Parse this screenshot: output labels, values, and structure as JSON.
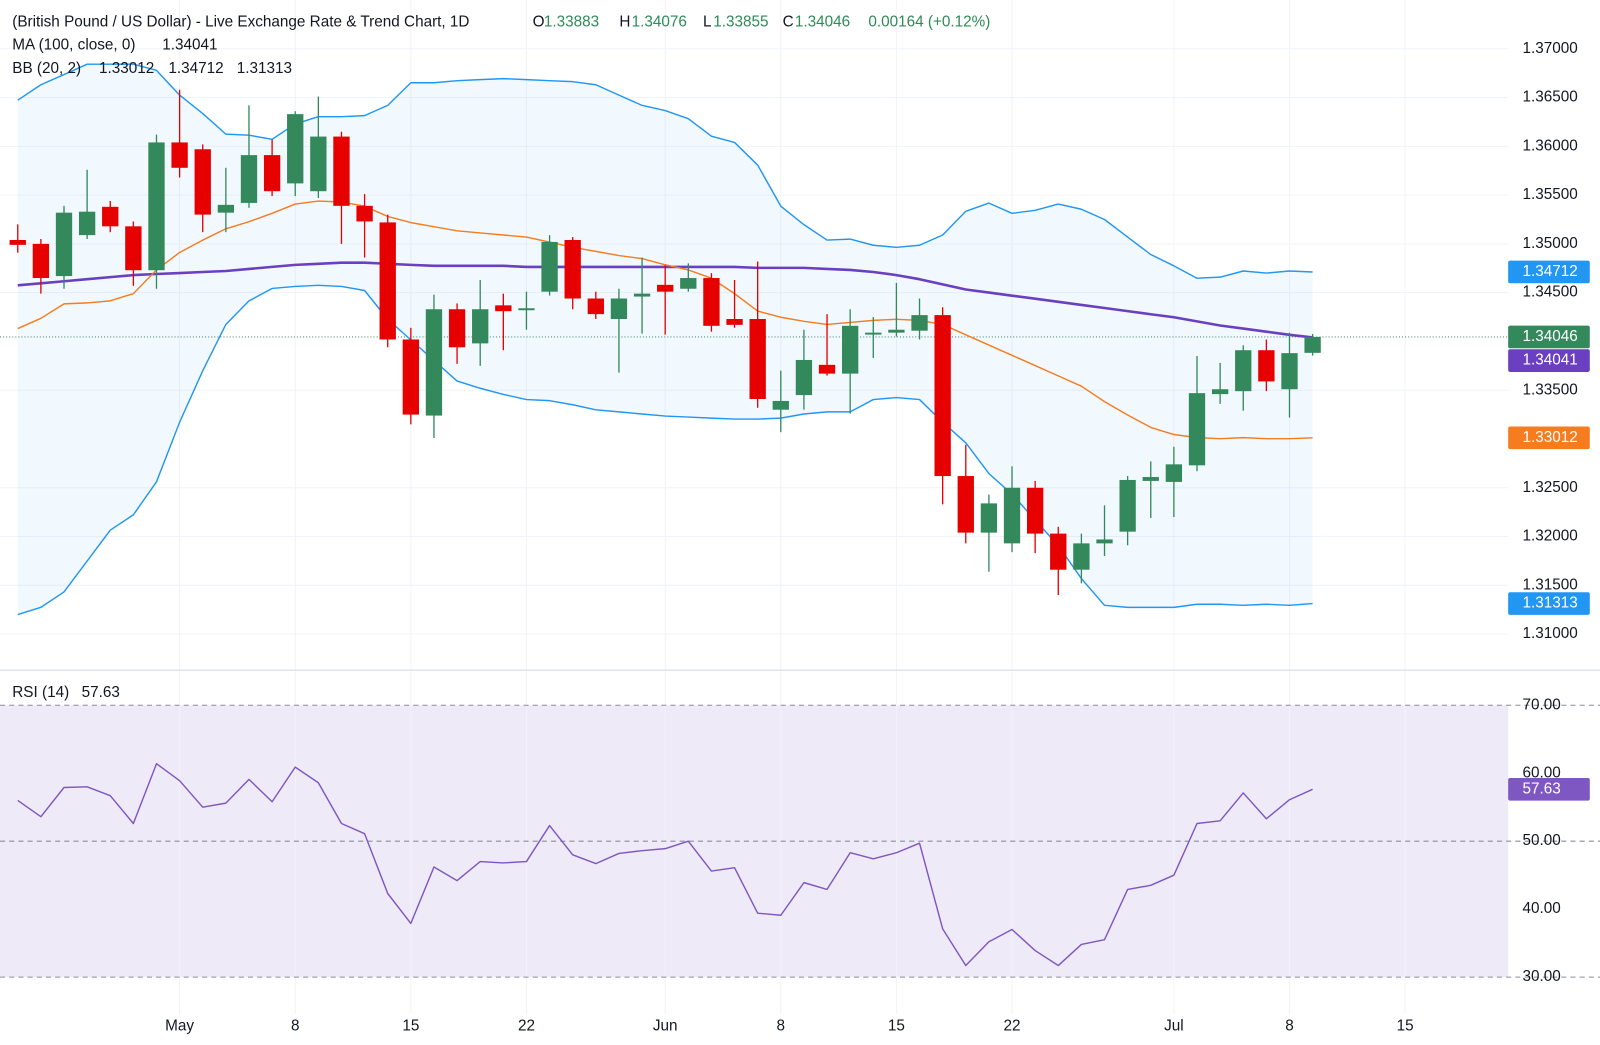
{
  "chart_data": [
    {
      "type": "candlestick",
      "title": "(British Pound / US Dollar) - Live Exchange Rate & Trend Chart, 1D",
      "ohlc_labels": [
        "O",
        "H",
        "L",
        "C"
      ],
      "change": "0.00164 (+0.12%)",
      "up_color": "#34895c",
      "down_color": "#e60000",
      "open": [
        1.3504,
        1.35,
        1.3467,
        1.3509,
        1.3538,
        1.3518,
        1.3473,
        1.3604,
        1.3597,
        1.3532,
        1.3542,
        1.3591,
        1.3562,
        1.3554,
        1.361,
        1.3539,
        1.3522,
        1.3402,
        1.3324,
        1.3433,
        1.3398,
        1.3437,
        1.3432,
        1.3451,
        1.3504,
        1.3444,
        1.3423,
        1.3446,
        1.3458,
        1.3454,
        1.3465,
        1.3423,
        1.3423,
        1.333,
        1.3345,
        1.3376,
        1.3367,
        1.3407,
        1.3409,
        1.3411,
        1.3427,
        1.3262,
        1.3204,
        1.3193,
        1.325,
        1.3203,
        1.3166,
        1.3193,
        1.3205,
        1.3257,
        1.3256,
        1.3273,
        1.3346,
        1.3349,
        1.3391,
        1.3351,
        1.33883,
        null,
        null,
        null,
        null
      ],
      "high": [
        1.352,
        1.3505,
        1.3539,
        1.3576,
        1.3544,
        1.3523,
        1.3612,
        1.3658,
        1.3602,
        1.3578,
        1.3642,
        1.3607,
        1.3636,
        1.3651,
        1.3615,
        1.3551,
        1.353,
        1.3414,
        1.3448,
        1.3439,
        1.3463,
        1.3449,
        1.3451,
        1.3509,
        1.3507,
        1.3451,
        1.3454,
        1.3486,
        1.3478,
        1.348,
        1.347,
        1.3463,
        1.3482,
        1.337,
        1.3412,
        1.3428,
        1.3433,
        1.3425,
        1.346,
        1.3444,
        1.3435,
        1.3294,
        1.3243,
        1.3272,
        1.3257,
        1.321,
        1.3203,
        1.3232,
        1.3262,
        1.3277,
        1.3292,
        1.3385,
        1.3378,
        1.3396,
        1.3402,
        1.3409,
        1.34076,
        null,
        null,
        null,
        null
      ],
      "low": [
        1.3491,
        1.3449,
        1.3454,
        1.3505,
        1.3512,
        1.3457,
        1.3454,
        1.3568,
        1.3512,
        1.3512,
        1.3537,
        1.3549,
        1.3549,
        1.3547,
        1.35,
        1.3486,
        1.3394,
        1.3315,
        1.3301,
        1.3377,
        1.3375,
        1.3391,
        1.3412,
        1.3447,
        1.3433,
        1.3423,
        1.3368,
        1.3408,
        1.3407,
        1.3451,
        1.341,
        1.3414,
        1.3332,
        1.3307,
        1.333,
        1.3365,
        1.3326,
        1.3383,
        1.3405,
        1.3402,
        1.3233,
        1.3193,
        1.3164,
        1.3184,
        1.3183,
        1.314,
        1.3152,
        1.318,
        1.3191,
        1.3219,
        1.322,
        1.3267,
        1.3336,
        1.3329,
        1.3349,
        1.3322,
        1.33855,
        null,
        null,
        null,
        null
      ],
      "close": [
        1.3499,
        1.3465,
        1.3532,
        1.3533,
        1.3518,
        1.3473,
        1.3604,
        1.3578,
        1.353,
        1.354,
        1.3591,
        1.3554,
        1.3633,
        1.361,
        1.3539,
        1.3523,
        1.3402,
        1.3325,
        1.3433,
        1.3394,
        1.3433,
        1.3431,
        1.3434,
        1.3502,
        1.3444,
        1.3428,
        1.3444,
        1.3449,
        1.3451,
        1.3465,
        1.3416,
        1.3417,
        1.3341,
        1.3339,
        1.3381,
        1.3367,
        1.3416,
        1.3409,
        1.3412,
        1.3427,
        1.3262,
        1.3204,
        1.3234,
        1.325,
        1.3203,
        1.3166,
        1.3193,
        1.3197,
        1.3258,
        1.3261,
        1.3274,
        1.3347,
        1.3351,
        1.3391,
        1.3359,
        1.3388,
        1.34046,
        null,
        null,
        null,
        null
      ],
      "series": [
        {
          "name": "MA (100, close, 0)",
          "color": "#6a3fc0",
          "values": [
            1.34575,
            1.34596,
            1.34617,
            1.34638,
            1.34659,
            1.3468,
            1.34691,
            1.34701,
            1.34712,
            1.34722,
            1.34743,
            1.34764,
            1.34785,
            1.34796,
            1.34807,
            1.34807,
            1.34796,
            1.34785,
            1.34775,
            1.34775,
            1.34775,
            1.34775,
            1.34764,
            1.34764,
            1.34764,
            1.34764,
            1.34764,
            1.34764,
            1.34764,
            1.34764,
            1.34764,
            1.34764,
            1.34754,
            1.34754,
            1.34754,
            1.34743,
            1.34733,
            1.34712,
            1.3468,
            1.34638,
            1.34585,
            1.34532,
            1.34501,
            1.34469,
            1.34438,
            1.34406,
            1.34374,
            1.34343,
            1.34311,
            1.34279,
            1.34248,
            1.34206,
            1.34163,
            1.34132,
            1.341,
            1.34068,
            1.34041,
            null,
            null,
            null,
            null
          ]
        },
        {
          "name": "BB (20, 2)",
          "color": "#f57c1f",
          "values": [
            1.34132,
            1.34237,
            1.34385,
            1.34395,
            1.34416,
            1.3449,
            1.34733,
            1.34912,
            1.35039,
            1.35155,
            1.35228,
            1.35313,
            1.35408,
            1.35439,
            1.35429,
            1.35387,
            1.35281,
            1.35218,
            1.35176,
            1.35134,
            1.35112,
            1.35091,
            1.3507,
            1.35018,
            1.34965,
            1.34923,
            1.3488,
            1.34849,
            1.34786,
            1.34733,
            1.34648,
            1.3449,
            1.34311,
            1.34248,
            1.34206,
            1.34174,
            1.34195,
            1.34216,
            1.34227,
            1.34216,
            1.34174,
            1.34068,
            1.33963,
            1.33858,
            1.33753,
            1.33647,
            1.33541,
            1.33383,
            1.33246,
            1.33119,
            1.33046,
            1.33014,
            1.33003,
            1.33014,
            1.33003,
            1.33003,
            1.33012,
            null,
            null,
            null,
            null
          ]
        },
        {
          "color": "#2196f3",
          "values": [
            1.36473,
            1.36631,
            1.36736,
            1.36842,
            1.36842,
            1.36842,
            1.36779,
            1.36525,
            1.36336,
            1.36125,
            1.36114,
            1.36072,
            1.3623,
            1.36304,
            1.36304,
            1.36315,
            1.3642,
            1.36652,
            1.36652,
            1.36673,
            1.36684,
            1.36694,
            1.36684,
            1.36673,
            1.36663,
            1.36631,
            1.36525,
            1.3642,
            1.36367,
            1.36283,
            1.36104,
            1.3604,
            1.35808,
            1.35387,
            1.35197,
            1.35039,
            1.35049,
            1.34986,
            1.34965,
            1.34986,
            1.35091,
            1.35334,
            1.35418,
            1.35313,
            1.35344,
            1.35408,
            1.35355,
            1.3525,
            1.3507,
            1.34891,
            1.34775,
            1.34648,
            1.34659,
            1.34722,
            1.34701,
            1.34722,
            1.34712,
            null,
            null,
            null,
            null
          ]
        },
        {
          "color": "#2196f3",
          "values": [
            1.312,
            1.31274,
            1.31432,
            1.31749,
            1.32065,
            1.32223,
            1.32561,
            1.33172,
            1.33699,
            1.34174,
            1.34416,
            1.34543,
            1.34564,
            1.34575,
            1.34564,
            1.34522,
            1.34227,
            1.34016,
            1.33805,
            1.33594,
            1.3352,
            1.33457,
            1.33404,
            1.33393,
            1.33351,
            1.33299,
            1.33278,
            1.33256,
            1.33235,
            1.33225,
            1.33214,
            1.33204,
            1.33204,
            1.33214,
            1.33256,
            1.33278,
            1.33278,
            1.33404,
            1.33425,
            1.33404,
            1.33172,
            1.32961,
            1.32645,
            1.32434,
            1.3217,
            1.31907,
            1.31569,
            1.31295,
            1.31274,
            1.31274,
            1.31274,
            1.31306,
            1.31306,
            1.31295,
            1.31306,
            1.31295,
            1.31313,
            null,
            null,
            null,
            null
          ]
        }
      ],
      "band_fill": "rgba(33,150,243,0.06)",
      "ylim": [
        1.3064,
        1.375
      ],
      "yticks": [
        {
          "value": 1.31,
          "label": "1.31000"
        },
        {
          "value": 1.315,
          "label": "1.31500"
        },
        {
          "value": 1.32,
          "label": "1.32000"
        },
        {
          "value": 1.325,
          "label": "1.32500"
        },
        {
          "value": 1.335,
          "label": "1.33500"
        },
        {
          "value": 1.345,
          "label": "1.34500"
        },
        {
          "value": 1.35,
          "label": "1.35000"
        },
        {
          "value": 1.355,
          "label": "1.35500"
        },
        {
          "value": 1.36,
          "label": "1.36000"
        },
        {
          "value": 1.365,
          "label": "1.36500"
        },
        {
          "value": 1.37,
          "label": "1.37000"
        }
      ],
      "grid": true
    },
    {
      "type": "line",
      "categories": [
        null,
        null,
        null,
        null,
        null,
        null,
        null,
        "May",
        null,
        null,
        null,
        null,
        "8",
        null,
        null,
        null,
        null,
        "15",
        null,
        null,
        null,
        null,
        "22",
        null,
        null,
        null,
        null,
        null,
        "Jun",
        null,
        null,
        null,
        null,
        "8",
        null,
        null,
        null,
        null,
        "15",
        null,
        null,
        null,
        null,
        "22",
        null,
        null,
        null,
        null,
        null,
        null,
        "Jul",
        null,
        null,
        null,
        null,
        "8",
        null,
        null,
        null,
        null,
        "15"
      ],
      "series": [
        {
          "name": "RSI (14)",
          "color": "#7e57c2",
          "values": [
            56.0,
            53.6,
            57.9,
            58.0,
            56.7,
            52.6,
            61.4,
            58.9,
            55.0,
            55.6,
            59.1,
            55.8,
            60.9,
            58.6,
            52.6,
            51.1,
            42.3,
            37.9,
            46.2,
            44.2,
            47.0,
            46.8,
            47.0,
            52.3,
            48.0,
            46.7,
            48.2,
            48.6,
            48.9,
            50.0,
            45.6,
            46.1,
            39.4,
            39.1,
            43.9,
            42.9,
            48.3,
            47.4,
            48.3,
            49.7,
            37.1,
            31.7,
            35.2,
            37.0,
            33.9,
            31.7,
            34.8,
            35.5,
            42.9,
            43.5,
            45.0,
            52.6,
            53.0,
            57.1,
            53.3,
            56.1,
            57.63,
            null,
            null,
            null,
            null
          ]
        }
      ],
      "levels": [
        70,
        50,
        30
      ],
      "band_fill": "#efeaf8",
      "ylim": [
        24.55,
        74.55
      ],
      "yticks": [
        {
          "value": 30,
          "label": "30.00"
        },
        {
          "value": 40,
          "label": "40.00"
        },
        {
          "value": 50,
          "label": "50.00"
        },
        {
          "value": 60,
          "label": "60.00"
        },
        {
          "value": 70,
          "label": "70.00"
        }
      ],
      "grid": false
    }
  ]
}
